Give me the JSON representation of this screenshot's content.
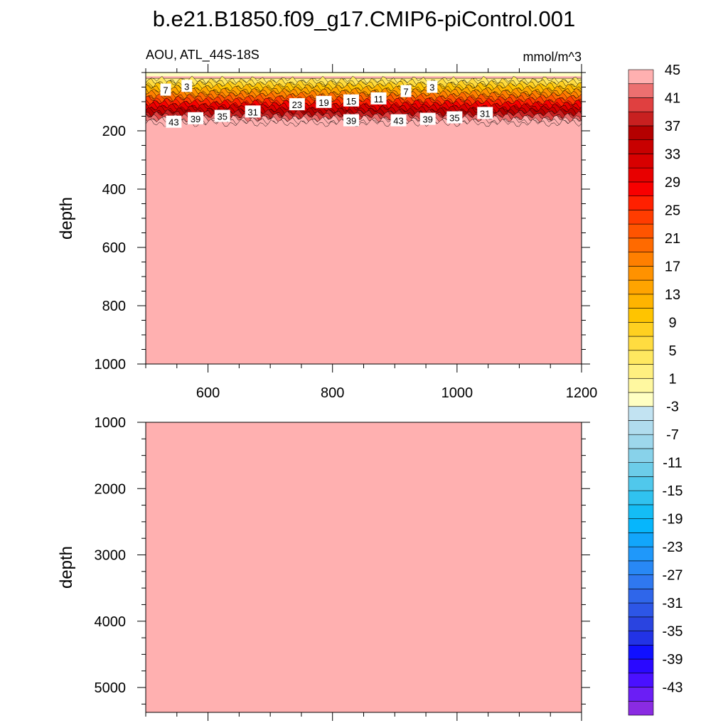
{
  "chart_data": {
    "type": "contour",
    "title": "b.e21.B1850.f09_g17.CMIP6-piControl.001",
    "left_subtitle": "AOU, ATL_44S-18S",
    "right_subtitle": "mmol/m^3",
    "ylabel": "depth",
    "panels": [
      {
        "name": "upper",
        "xlim": [
          500,
          1200
        ],
        "ylim": [
          0,
          1000
        ],
        "y_inverted": true,
        "xticks": [
          600,
          800,
          1000,
          1200
        ],
        "yticks": [
          200,
          400,
          600,
          800,
          1000
        ],
        "xtick_labels": [
          "600",
          "800",
          "1000",
          "1200"
        ],
        "ytick_labels": [
          "200",
          "400",
          "600",
          "800",
          "1000"
        ],
        "surface_negative_depth": 13,
        "gradient_start_depth": 30,
        "saturation_depth": 180,
        "fill_value_below": 46,
        "contour_labels": [
          {
            "text": "7",
            "x": 532,
            "depth": 60
          },
          {
            "text": "3",
            "x": 566,
            "depth": 47
          },
          {
            "text": "43",
            "x": 545,
            "depth": 170
          },
          {
            "text": "39",
            "x": 580,
            "depth": 158
          },
          {
            "text": "35",
            "x": 623,
            "depth": 150
          },
          {
            "text": "31",
            "x": 672,
            "depth": 135
          },
          {
            "text": "23",
            "x": 743,
            "depth": 110
          },
          {
            "text": "19",
            "x": 786,
            "depth": 102
          },
          {
            "text": "15",
            "x": 830,
            "depth": 97
          },
          {
            "text": "11",
            "x": 874,
            "depth": 90
          },
          {
            "text": "7",
            "x": 918,
            "depth": 65
          },
          {
            "text": "3",
            "x": 960,
            "depth": 50
          },
          {
            "text": "39",
            "x": 830,
            "depth": 165
          },
          {
            "text": "43",
            "x": 906,
            "depth": 165
          },
          {
            "text": "39",
            "x": 953,
            "depth": 160
          },
          {
            "text": "35",
            "x": 996,
            "depth": 155
          },
          {
            "text": "31",
            "x": 1045,
            "depth": 140
          }
        ]
      },
      {
        "name": "lower",
        "xlim": [
          500,
          1200
        ],
        "ylim": [
          1000,
          5375
        ],
        "y_inverted": true,
        "yticks": [
          1000,
          2000,
          3000,
          4000,
          5000
        ],
        "ytick_labels": [
          "1000",
          "2000",
          "3000",
          "4000",
          "5000"
        ],
        "fill_value": 46
      }
    ],
    "colorbar": {
      "levels_min": -45,
      "levels_max": 45,
      "levels_step": 2,
      "tick_labels": [
        "45",
        "41",
        "37",
        "33",
        "29",
        "25",
        "21",
        "17",
        "13",
        "9",
        "5",
        "1",
        "-3",
        "-7",
        "-11",
        "-15",
        "-19",
        "-23",
        "-27",
        "-31",
        "-35",
        "-39",
        "-43"
      ],
      "colors": [
        "#8a2be2",
        "#6b1ef5",
        "#4a10ff",
        "#2a08ff",
        "#1010ff",
        "#2233e6",
        "#2a44e0",
        "#2d56e6",
        "#2f66ea",
        "#2f78f0",
        "#2888f5",
        "#1f98fa",
        "#12a6fb",
        "#06b6fc",
        "#14bdf5",
        "#30c2ef",
        "#50c8ec",
        "#6ccde9",
        "#88d2ea",
        "#9dd7ec",
        "#b0dcee",
        "#c2e3f2",
        "#ffffc2",
        "#fff8a0",
        "#fff080",
        "#ffe860",
        "#ffdc40",
        "#ffd020",
        "#ffc400",
        "#ffb400",
        "#ffa400",
        "#ff9200",
        "#ff7f00",
        "#ff6a00",
        "#ff5400",
        "#ff3c00",
        "#ff2000",
        "#f80000",
        "#e80000",
        "#d80000",
        "#c80000",
        "#b40000",
        "#c82020",
        "#e04040",
        "#ec7070",
        "#ffb0b0"
      ]
    }
  }
}
